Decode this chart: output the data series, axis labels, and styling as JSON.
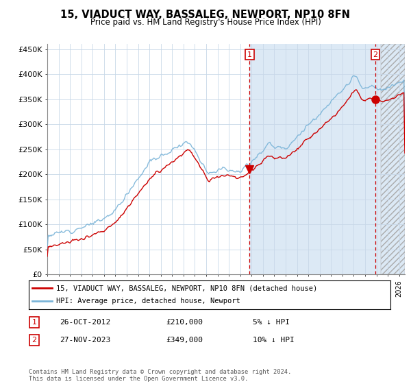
{
  "title": "15, VIADUCT WAY, BASSALEG, NEWPORT, NP10 8FN",
  "subtitle": "Price paid vs. HM Land Registry's House Price Index (HPI)",
  "xlim": [
    1995.0,
    2026.5
  ],
  "ylim": [
    0,
    460000
  ],
  "yticks": [
    0,
    50000,
    100000,
    150000,
    200000,
    250000,
    300000,
    350000,
    400000,
    450000
  ],
  "hpi_color": "#7ab4d8",
  "price_color": "#cc0000",
  "sale1_x": 2012.82,
  "sale1_y": 210000,
  "sale2_x": 2023.9,
  "sale2_y": 349000,
  "sale1_date": "26-OCT-2012",
  "sale1_price": "£210,000",
  "sale1_note": "5% ↓ HPI",
  "sale2_date": "27-NOV-2023",
  "sale2_price": "£349,000",
  "sale2_note": "10% ↓ HPI",
  "legend_line1": "15, VIADUCT WAY, BASSALEG, NEWPORT, NP10 8FN (detached house)",
  "legend_line2": "HPI: Average price, detached house, Newport",
  "footer": "Contains HM Land Registry data © Crown copyright and database right 2024.\nThis data is licensed under the Open Government Licence v3.0.",
  "shaded_start": 2012.82,
  "hatch_start": 2024.4,
  "shaded_end": 2026.5,
  "bg_color": "#dce9f5",
  "hatch_color": "#aaaaaa",
  "grid_color": "#c8d8e8"
}
